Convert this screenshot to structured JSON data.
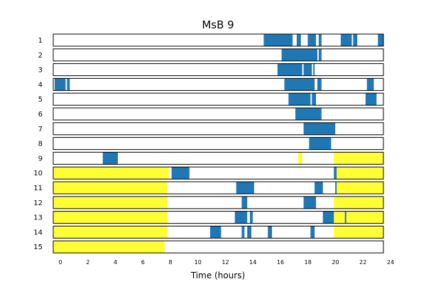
{
  "chart_data": {
    "type": "timeline",
    "title": "MsB 9",
    "xlabel": "Time (hours)",
    "ylabel": "",
    "xlim": [
      0,
      24
    ],
    "xticks": [
      0,
      2,
      4,
      6,
      8,
      10,
      12,
      14,
      16,
      18,
      20,
      22,
      24
    ],
    "colors": {
      "activity": "#1f77b4",
      "highlight": "#ffff33",
      "frame": "#000000"
    },
    "rows": [
      {
        "label": "1",
        "highlight": [],
        "activity": [
          [
            15.3,
            17.4
          ],
          [
            17.7,
            18.0
          ],
          [
            18.5,
            19.1
          ],
          [
            19.3,
            19.5
          ],
          [
            20.9,
            21.7
          ],
          [
            21.8,
            22.1
          ],
          [
            23.6,
            24.0
          ]
        ]
      },
      {
        "label": "2",
        "highlight": [],
        "activity": [
          [
            16.6,
            19.2
          ],
          [
            19.3,
            19.5
          ]
        ]
      },
      {
        "label": "3",
        "highlight": [],
        "activity": [
          [
            16.3,
            18.1
          ],
          [
            18.2,
            18.8
          ],
          [
            18.9,
            19.0
          ]
        ]
      },
      {
        "label": "4",
        "highlight": [],
        "activity": [
          [
            0.1,
            0.9
          ],
          [
            1.0,
            1.2
          ],
          [
            16.8,
            19.0
          ],
          [
            19.2,
            19.5
          ],
          [
            22.8,
            23.3
          ]
        ]
      },
      {
        "label": "5",
        "highlight": [],
        "activity": [
          [
            17.1,
            18.7
          ],
          [
            18.8,
            19.1
          ],
          [
            22.7,
            23.5
          ]
        ]
      },
      {
        "label": "6",
        "highlight": [],
        "activity": [
          [
            17.6,
            19.5
          ]
        ]
      },
      {
        "label": "7",
        "highlight": [],
        "activity": [
          [
            18.2,
            20.5
          ]
        ]
      },
      {
        "label": "8",
        "highlight": [],
        "activity": [
          [
            18.6,
            20.2
          ]
        ]
      },
      {
        "label": "9",
        "highlight": [
          [
            17.8,
            18.1
          ],
          [
            20.4,
            24.0
          ]
        ],
        "activity": [
          [
            3.6,
            4.7
          ]
        ]
      },
      {
        "label": "10",
        "highlight": [
          [
            0.0,
            8.4
          ],
          [
            20.5,
            24.0
          ]
        ],
        "activity": [
          [
            8.6,
            9.9
          ],
          [
            20.4,
            20.6
          ]
        ]
      },
      {
        "label": "11",
        "highlight": [
          [
            0.0,
            8.3
          ],
          [
            20.6,
            24.0
          ]
        ],
        "activity": [
          [
            13.3,
            14.6
          ],
          [
            19.0,
            19.6
          ],
          [
            20.5,
            20.6
          ]
        ]
      },
      {
        "label": "12",
        "highlight": [
          [
            0.0,
            8.3
          ],
          [
            20.4,
            24.0
          ]
        ],
        "activity": [
          [
            13.7,
            14.1
          ],
          [
            18.2,
            19.1
          ]
        ]
      },
      {
        "label": "13",
        "highlight": [
          [
            0.0,
            8.3
          ],
          [
            20.4,
            24.0
          ]
        ],
        "activity": [
          [
            13.2,
            14.1
          ],
          [
            14.3,
            14.5
          ],
          [
            19.6,
            20.4
          ],
          [
            21.2,
            21.3
          ]
        ]
      },
      {
        "label": "14",
        "highlight": [
          [
            0.0,
            8.3
          ],
          [
            20.4,
            24.0
          ]
        ],
        "activity": [
          [
            11.4,
            12.2
          ],
          [
            13.7,
            13.9
          ],
          [
            14.1,
            14.4
          ],
          [
            15.6,
            15.9
          ],
          [
            18.7,
            19.0
          ]
        ]
      },
      {
        "label": "15",
        "highlight": [
          [
            0.0,
            8.1
          ]
        ],
        "activity": []
      }
    ]
  }
}
